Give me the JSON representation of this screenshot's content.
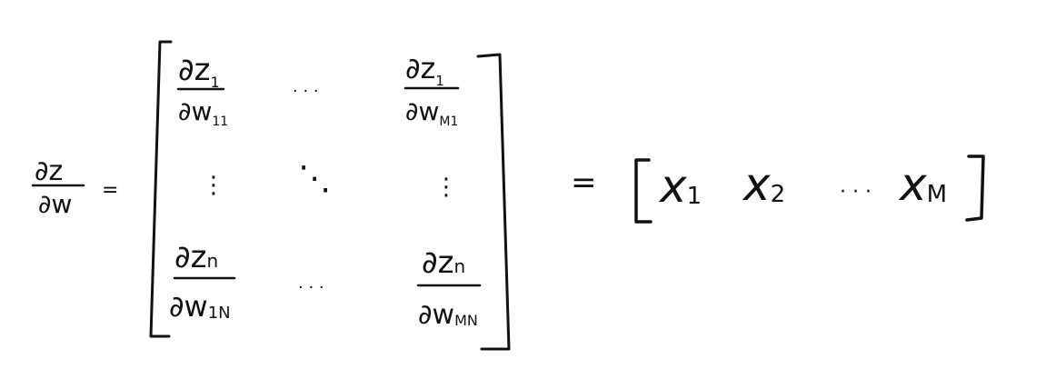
{
  "lhs": {
    "numerator": "∂z",
    "denominator": "∂w",
    "equals": "="
  },
  "matrix": {
    "cells": [
      {
        "num_base": "∂z",
        "num_sub": "1",
        "den_base": "∂w",
        "den_sub": "11"
      },
      {
        "num_base": "∂z",
        "num_sub": "1",
        "den_base": "∂w",
        "den_sub": "M1"
      },
      {
        "num_base": "∂z",
        "num_sub": "n",
        "den_base": "∂w",
        "den_sub": "1N"
      },
      {
        "num_base": "∂z",
        "num_sub": "n",
        "den_base": "∂w",
        "den_sub": "MN"
      }
    ],
    "hdots": "· · ·",
    "vdots": "⋮",
    "ddots": "⋱"
  },
  "rhs": {
    "equals": "=",
    "entries": [
      {
        "base": "x",
        "sub": "1"
      },
      {
        "base": "x",
        "sub": "2"
      },
      {
        "base": "x",
        "sub": "M"
      }
    ],
    "dots": "· · ·"
  },
  "colors": {
    "ink": "#111111",
    "background": "#ffffff"
  }
}
